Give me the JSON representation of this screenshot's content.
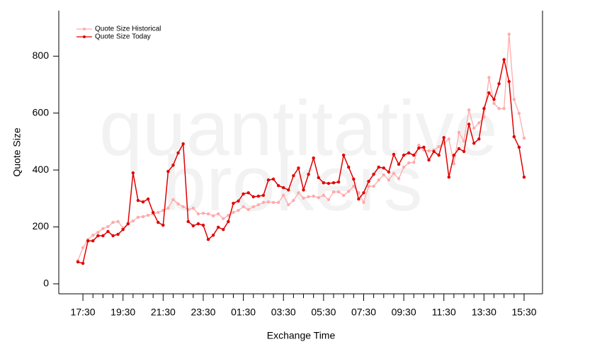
{
  "chart_data": {
    "type": "line",
    "watermark": [
      "quantitative",
      "brokers"
    ],
    "xlabel": "Exchange Time",
    "ylabel": "Quote Size",
    "categories": [
      null,
      "17:30",
      null,
      null,
      null,
      null,
      null,
      null,
      null,
      "19:30",
      null,
      null,
      null,
      null,
      null,
      null,
      null,
      "21:30",
      null,
      null,
      null,
      null,
      null,
      null,
      null,
      "23:30",
      null,
      null,
      null,
      null,
      null,
      null,
      null,
      "01:30",
      null,
      null,
      null,
      null,
      null,
      null,
      null,
      "03:30",
      null,
      null,
      null,
      null,
      null,
      null,
      null,
      "05:30",
      null,
      null,
      null,
      null,
      null,
      null,
      null,
      "07:30",
      null,
      null,
      null,
      null,
      null,
      null,
      null,
      "09:30",
      null,
      null,
      null,
      null,
      null,
      null,
      null,
      "11:30",
      null,
      null,
      null,
      null,
      null,
      null,
      null,
      "13:30",
      null,
      null,
      null,
      null,
      null,
      null,
      null,
      "15:30"
    ],
    "series": [
      {
        "name": "Quote Size Historical",
        "color": "#ffaaaa",
        "values": [
          82,
          127,
          156,
          171,
          181,
          194,
          201,
          216,
          219,
          196,
          211,
          221,
          234,
          236,
          241,
          246,
          251,
          258,
          266,
          296,
          281,
          271,
          261,
          266,
          246,
          248,
          246,
          239,
          246,
          229,
          241,
          251,
          258,
          271,
          261,
          271,
          278,
          286,
          288,
          286,
          286,
          311,
          278,
          293,
          320,
          301,
          306,
          308,
          303,
          311,
          296,
          323,
          323,
          311,
          325,
          343,
          320,
          286,
          343,
          343,
          365,
          383,
          365,
          388,
          370,
          410,
          425,
          427,
          487,
          470,
          467,
          470,
          482,
          494,
          509,
          422,
          532,
          502,
          611,
          547,
          566,
          586,
          725,
          634,
          616,
          616,
          877,
          648,
          599,
          512
        ]
      },
      {
        "name": "Quote Size Today",
        "color": "#e00000",
        "values": [
          77,
          72,
          151,
          151,
          169,
          169,
          184,
          169,
          174,
          191,
          211,
          390,
          293,
          288,
          298,
          251,
          216,
          206,
          395,
          417,
          460,
          492,
          219,
          204,
          211,
          206,
          156,
          171,
          199,
          191,
          219,
          283,
          291,
          316,
          320,
          306,
          308,
          311,
          365,
          368,
          345,
          338,
          330,
          380,
          407,
          330,
          385,
          442,
          373,
          355,
          353,
          355,
          358,
          452,
          410,
          368,
          298,
          320,
          360,
          385,
          410,
          407,
          393,
          455,
          420,
          452,
          460,
          452,
          477,
          480,
          435,
          465,
          452,
          514,
          375,
          452,
          475,
          465,
          561,
          494,
          509,
          616,
          671,
          648,
          703,
          788,
          711,
          517,
          480,
          375
        ]
      }
    ],
    "ylim": [
      -35,
      960
    ],
    "yticks": [
      0,
      200,
      400,
      600,
      800
    ],
    "legend": "top-left"
  }
}
